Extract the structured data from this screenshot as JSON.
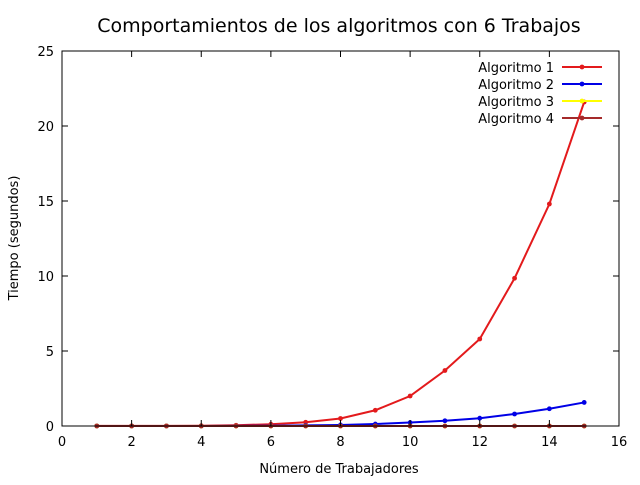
{
  "chart_data": {
    "type": "line",
    "title": "Comportamientos de los algoritmos con 6 Trabajos",
    "xlabel": "Número de Trabajadores",
    "ylabel": "Tiempo (segundos)",
    "xlim": [
      0,
      16
    ],
    "ylim": [
      0,
      25
    ],
    "xticks": [
      0,
      2,
      4,
      6,
      8,
      10,
      12,
      14,
      16
    ],
    "yticks": [
      0,
      5,
      10,
      15,
      20,
      25
    ],
    "grid": false,
    "legend_position": "top-right",
    "x": [
      1,
      2,
      3,
      4,
      5,
      6,
      7,
      8,
      9,
      10,
      11,
      12,
      13,
      14,
      15
    ],
    "series": [
      {
        "name": "Algoritmo 1",
        "color": "#e31a1c",
        "values": [
          0.01,
          0.01,
          0.01,
          0.02,
          0.05,
          0.12,
          0.25,
          0.5,
          1.05,
          2.0,
          3.7,
          5.8,
          9.85,
          14.8,
          21.6
        ]
      },
      {
        "name": "Algoritmo 2",
        "color": "#0000e6",
        "values": [
          0.0,
          0.0,
          0.0,
          0.0,
          0.01,
          0.02,
          0.04,
          0.07,
          0.13,
          0.23,
          0.35,
          0.52,
          0.8,
          1.15,
          1.57
        ]
      },
      {
        "name": "Algoritmo 3",
        "color": "#ffff00",
        "values": [
          0,
          0,
          0,
          0,
          0,
          0,
          0,
          0,
          0,
          0,
          0,
          0,
          0,
          0,
          0
        ]
      },
      {
        "name": "Algoritmo 4",
        "color": "#a52a2a",
        "values": [
          0,
          0,
          0,
          0,
          0,
          0,
          0,
          0,
          0,
          0,
          0,
          0,
          0,
          0,
          0
        ]
      }
    ]
  }
}
